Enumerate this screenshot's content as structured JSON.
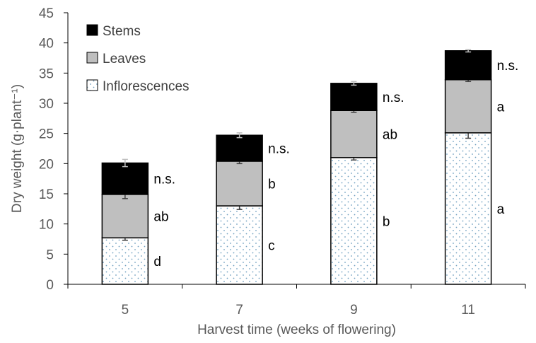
{
  "chart_data": {
    "type": "bar",
    "stacked": true,
    "title": "",
    "xlabel": "Harvest time (weeks of flowering)",
    "ylabel": "Dry weight (g·plant⁻¹)",
    "ylim": [
      0,
      45
    ],
    "yticks": [
      0,
      5,
      10,
      15,
      20,
      25,
      30,
      35,
      40,
      45
    ],
    "categories": [
      "5",
      "7",
      "9",
      "11"
    ],
    "legend_position": "top-left",
    "series": [
      {
        "name": "Inflorescences",
        "color": "#ffffff",
        "pattern": "dotted",
        "values": [
          7.7,
          13.0,
          21.0,
          25.1
        ],
        "errors": [
          0.4,
          0.6,
          0.4,
          0.9
        ],
        "letters": [
          "d",
          "c",
          "b",
          "a"
        ]
      },
      {
        "name": "Leaves",
        "color": "#bfbfbf",
        "values": [
          7.2,
          7.4,
          7.8,
          8.8
        ],
        "errors": [
          0.7,
          0.4,
          0.3,
          0.3
        ],
        "letters": [
          "ab",
          "b",
          "ab",
          "a"
        ]
      },
      {
        "name": "Stems",
        "color": "#000000",
        "values": [
          5.2,
          4.3,
          4.5,
          4.8
        ],
        "errors": [
          0.6,
          0.4,
          0.3,
          0.2
        ],
        "letters": [
          "n.s.",
          "n.s.",
          "n.s.",
          "n.s."
        ]
      }
    ]
  }
}
